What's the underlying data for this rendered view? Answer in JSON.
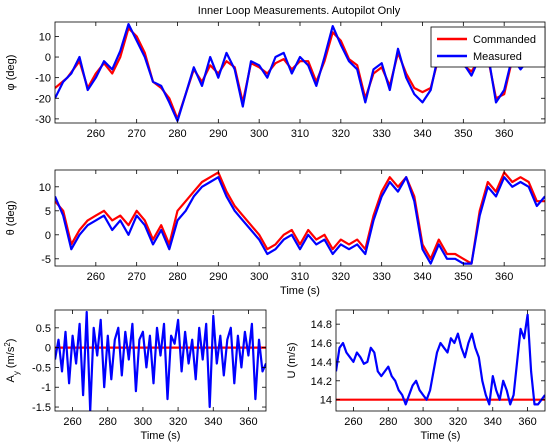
{
  "colors": {
    "commanded": "#ff0000",
    "measured": "#0000ff",
    "axes": "#000000",
    "background": "#ffffff"
  },
  "chart_data": [
    {
      "type": "line",
      "title": "Inner Loop Measurements. Autopilot Only",
      "ylabel": "φ (deg)",
      "xlabel": "",
      "xlim": [
        250,
        370
      ],
      "ylim": [
        -32,
        17
      ],
      "xticks": [
        260,
        270,
        280,
        290,
        300,
        310,
        320,
        330,
        340,
        350,
        360
      ],
      "yticks": [
        -30,
        -20,
        -10,
        0,
        10
      ],
      "legend": {
        "position": "top-right",
        "entries": [
          "Commanded",
          "Measured"
        ]
      },
      "series": [
        {
          "name": "Commanded",
          "x": [
            250,
            253,
            256,
            258,
            260,
            262,
            264,
            266,
            268,
            270,
            272,
            274,
            276,
            278,
            280,
            282,
            284,
            286,
            288,
            290,
            292,
            294,
            296,
            298,
            300,
            302,
            304,
            306,
            308,
            310,
            312,
            314,
            316,
            318,
            320,
            322,
            324,
            326,
            328,
            330,
            332,
            334,
            336,
            338,
            340,
            342,
            344,
            346,
            348,
            350,
            352,
            354,
            356,
            358,
            360,
            362,
            364,
            366,
            368,
            370
          ],
          "y": [
            -15,
            -10,
            -2,
            -15,
            -8,
            -3,
            -8,
            0,
            14,
            10,
            2,
            -12,
            -15,
            -20,
            -30,
            -18,
            -6,
            -12,
            -4,
            -8,
            -2,
            -5,
            -22,
            -3,
            -5,
            -8,
            -3,
            -1,
            -6,
            -2,
            -2,
            -12,
            -2,
            12,
            8,
            -1,
            -4,
            -20,
            -8,
            -5,
            -14,
            2,
            -8,
            -15,
            -17,
            -15,
            0,
            1,
            2,
            -4,
            -7,
            -1,
            0,
            -20,
            -18,
            -1,
            -4,
            -2,
            -3,
            -3
          ]
        },
        {
          "name": "Measured",
          "x": [
            250,
            252,
            254,
            256,
            258,
            260,
            262,
            264,
            266,
            268,
            270,
            272,
            274,
            276,
            278,
            280,
            282,
            284,
            286,
            288,
            290,
            292,
            294,
            296,
            298,
            300,
            302,
            304,
            306,
            308,
            310,
            312,
            314,
            316,
            318,
            320,
            322,
            324,
            326,
            328,
            330,
            332,
            334,
            336,
            338,
            340,
            342,
            344,
            346,
            348,
            350,
            352,
            354,
            356,
            358,
            360,
            362,
            364,
            366,
            368,
            370
          ],
          "y": [
            -20,
            -12,
            -8,
            0,
            -16,
            -10,
            -2,
            -6,
            3,
            16,
            8,
            0,
            -12,
            -14,
            -22,
            -31,
            -18,
            -5,
            -14,
            0,
            -10,
            2,
            -6,
            -24,
            -2,
            -4,
            -10,
            0,
            2,
            -8,
            0,
            -4,
            -14,
            0,
            15,
            6,
            -2,
            -6,
            -22,
            -6,
            -3,
            -16,
            4,
            -10,
            -18,
            -22,
            -16,
            2,
            0,
            4,
            -3,
            -9,
            0,
            2,
            -22,
            -16,
            0,
            -6,
            -1,
            -4,
            -2
          ]
        }
      ]
    },
    {
      "type": "line",
      "title": "",
      "ylabel": "θ (deg)",
      "xlabel": "Time (s)",
      "xlim": [
        250,
        370
      ],
      "ylim": [
        -6.5,
        13.5
      ],
      "xticks": [
        260,
        270,
        280,
        290,
        300,
        310,
        320,
        330,
        340,
        350,
        360
      ],
      "yticks": [
        -5,
        0,
        5,
        10
      ],
      "series": [
        {
          "name": "Commanded",
          "x": [
            250,
            252,
            254,
            256,
            258,
            260,
            262,
            264,
            266,
            268,
            270,
            272,
            274,
            276,
            278,
            280,
            282,
            284,
            286,
            288,
            290,
            292,
            294,
            296,
            298,
            300,
            302,
            304,
            306,
            308,
            310,
            312,
            314,
            316,
            318,
            320,
            322,
            324,
            326,
            328,
            330,
            332,
            334,
            336,
            338,
            340,
            342,
            344,
            346,
            348,
            350,
            352,
            354,
            356,
            358,
            360,
            362,
            364,
            366,
            368,
            370
          ],
          "y": [
            7,
            5,
            -2,
            1,
            3,
            4,
            5,
            3,
            4,
            2,
            5,
            3,
            -1,
            2,
            -2,
            5,
            7,
            9,
            11,
            12,
            13,
            9,
            6,
            4,
            2,
            0,
            -3,
            -2,
            0,
            1,
            -2,
            1,
            -1,
            0,
            -3,
            -1,
            -2,
            -1,
            -3,
            4,
            9,
            12,
            10,
            12,
            8,
            -2,
            -5,
            -1,
            -4,
            -4,
            -5,
            -6,
            5,
            11,
            9,
            13,
            11,
            12,
            11,
            7,
            7
          ]
        },
        {
          "name": "Measured",
          "x": [
            250,
            252,
            254,
            256,
            258,
            260,
            262,
            264,
            266,
            268,
            270,
            272,
            274,
            276,
            278,
            280,
            282,
            284,
            286,
            288,
            290,
            292,
            294,
            296,
            298,
            300,
            302,
            304,
            306,
            308,
            310,
            312,
            314,
            316,
            318,
            320,
            322,
            324,
            326,
            328,
            330,
            332,
            334,
            336,
            338,
            340,
            342,
            344,
            346,
            348,
            350,
            352,
            354,
            356,
            358,
            360,
            362,
            364,
            366,
            368,
            370
          ],
          "y": [
            8,
            4,
            -3,
            0,
            2,
            3,
            4,
            1,
            3,
            0,
            4,
            2,
            -2,
            1,
            -3,
            3,
            5,
            8,
            10,
            11,
            12,
            8,
            5,
            3,
            1,
            -1,
            -4,
            -3,
            -1,
            0,
            -3,
            0,
            -2,
            -1,
            -4,
            -2,
            -3,
            -2,
            -4,
            3,
            8,
            11,
            9,
            12,
            7,
            -3,
            -6,
            -2,
            -5,
            -5,
            -6,
            -6,
            4,
            10,
            8,
            12,
            10,
            11,
            10,
            6,
            8
          ]
        }
      ]
    },
    {
      "type": "line",
      "title": "",
      "ylabel": "A_y (m/s^2)",
      "xlabel": "Time (s)",
      "xlim": [
        250,
        370
      ],
      "ylim": [
        -1.6,
        0.95
      ],
      "xticks": [
        260,
        280,
        300,
        320,
        340,
        360
      ],
      "yticks": [
        -1.5,
        -1,
        -0.5,
        0,
        0.5
      ],
      "series": [
        {
          "name": "Commanded",
          "x": [
            250,
            370
          ],
          "y": [
            0,
            0
          ]
        },
        {
          "name": "Measured",
          "x": [
            250,
            252,
            254,
            256,
            258,
            260,
            262,
            264,
            266,
            268,
            270,
            272,
            274,
            276,
            278,
            280,
            282,
            284,
            286,
            288,
            290,
            292,
            294,
            296,
            298,
            300,
            302,
            304,
            306,
            308,
            310,
            312,
            314,
            316,
            318,
            320,
            322,
            324,
            326,
            328,
            330,
            332,
            334,
            336,
            338,
            340,
            342,
            344,
            346,
            348,
            350,
            352,
            354,
            356,
            358,
            360,
            362,
            364,
            366,
            368,
            370
          ],
          "y": [
            -0.3,
            0.2,
            -0.6,
            0.4,
            -0.9,
            0.3,
            -0.4,
            0.6,
            -1.2,
            0.9,
            -1.6,
            0.5,
            -0.2,
            0.7,
            -1.0,
            0.3,
            -0.8,
            0.2,
            0.5,
            -0.7,
            0.4,
            -0.3,
            0.6,
            -1.1,
            0.2,
            0.4,
            -0.5,
            0.3,
            -0.9,
            0.5,
            -0.2,
            0.6,
            -1.3,
            0.3,
            0.1,
            0.7,
            -0.6,
            0.4,
            -0.4,
            0.2,
            -0.8,
            0.5,
            -0.3,
            0.6,
            -1.5,
            0.8,
            -0.4,
            0.3,
            -0.7,
            0.2,
            0.5,
            -0.9,
            0.3,
            -0.5,
            0.4,
            -0.2,
            0.6,
            -1.3,
            0.2,
            -0.6,
            -0.4
          ]
        }
      ]
    },
    {
      "type": "line",
      "title": "",
      "ylabel": "U (m/s)",
      "xlabel": "Time (s)",
      "xlim": [
        250,
        370
      ],
      "ylim": [
        13.88,
        14.95
      ],
      "xticks": [
        260,
        280,
        300,
        320,
        340,
        360
      ],
      "yticks": [
        14,
        14.2,
        14.4,
        14.6,
        14.8
      ],
      "series": [
        {
          "name": "Commanded",
          "x": [
            250,
            370
          ],
          "y": [
            14,
            14
          ]
        },
        {
          "name": "Measured",
          "x": [
            250,
            252,
            254,
            256,
            258,
            260,
            262,
            264,
            266,
            268,
            270,
            272,
            274,
            276,
            278,
            280,
            282,
            284,
            286,
            288,
            290,
            292,
            294,
            296,
            298,
            300,
            302,
            304,
            306,
            308,
            310,
            312,
            314,
            316,
            318,
            320,
            322,
            324,
            326,
            328,
            330,
            332,
            334,
            336,
            338,
            340,
            342,
            344,
            346,
            348,
            350,
            352,
            354,
            356,
            358,
            360,
            362,
            364,
            366,
            368,
            370
          ],
          "y": [
            14.3,
            14.55,
            14.6,
            14.5,
            14.45,
            14.4,
            14.5,
            14.45,
            14.38,
            14.4,
            14.55,
            14.5,
            14.3,
            14.25,
            14.3,
            14.35,
            14.25,
            14.2,
            14.1,
            14.05,
            13.95,
            14.05,
            14.15,
            14.2,
            14.1,
            14.05,
            14.0,
            14.1,
            14.3,
            14.5,
            14.6,
            14.55,
            14.5,
            14.65,
            14.6,
            14.7,
            14.55,
            14.45,
            14.6,
            14.7,
            14.55,
            14.45,
            14.2,
            14.05,
            13.95,
            14.25,
            14.1,
            14.0,
            14.2,
            14.1,
            13.95,
            14.05,
            14.4,
            14.75,
            14.65,
            14.9,
            14.3,
            13.95,
            13.95,
            14.0,
            14.05
          ]
        }
      ]
    }
  ]
}
